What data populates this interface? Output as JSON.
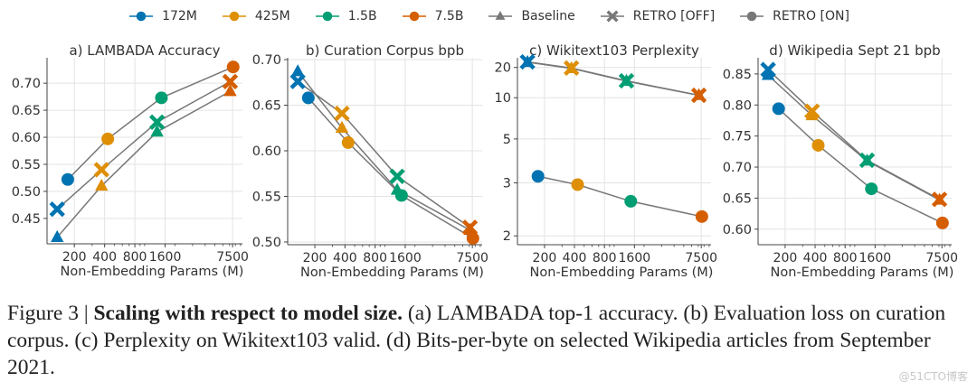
{
  "legend": [
    {
      "label": "172M",
      "color": "#0173b2",
      "marker": "circle"
    },
    {
      "label": "425M",
      "color": "#de8f05",
      "marker": "circle"
    },
    {
      "label": "1.5B",
      "color": "#029e73",
      "marker": "circle"
    },
    {
      "label": "7.5B",
      "color": "#d55e00",
      "marker": "circle"
    },
    {
      "label": "Baseline",
      "color": "#777777",
      "marker": "triangle"
    },
    {
      "label": "RETRO [OFF]",
      "color": "#777777",
      "marker": "x"
    },
    {
      "label": "RETRO [ON]",
      "color": "#777777",
      "marker": "circle"
    }
  ],
  "size_colors": [
    "#0173b2",
    "#de8f05",
    "#029e73",
    "#d55e00"
  ],
  "chart_data": [
    {
      "type": "line",
      "title": "a) LAMBADA Accuracy",
      "xlabel": "Non-Embedding Params (M)",
      "xscale": "log",
      "xticks": [
        200,
        400,
        800,
        1600,
        7500
      ],
      "xlim": [
        107,
        9400
      ],
      "ylim": [
        0.403,
        0.747
      ],
      "yscale": "linear",
      "yticks": [
        "0.45",
        "0.50",
        "0.55",
        "0.60",
        "0.65",
        "0.70"
      ],
      "grid": true,
      "series": [
        {
          "name": "Baseline",
          "marker": "triangle",
          "x": [
            135,
            373,
            1330,
            7100
          ],
          "y": [
            0.415,
            0.51,
            0.61,
            0.685
          ]
        },
        {
          "name": "RETRO [OFF]",
          "marker": "x",
          "x": [
            135,
            373,
            1330,
            7100
          ],
          "y": [
            0.467,
            0.54,
            0.628,
            0.703
          ]
        },
        {
          "name": "RETRO [ON]",
          "marker": "circle",
          "x": [
            172,
            430,
            1470,
            7600
          ],
          "y": [
            0.522,
            0.597,
            0.673,
            0.73
          ]
        }
      ]
    },
    {
      "type": "line",
      "title": "b) Curation Corpus bpb",
      "xlabel": "Non-Embedding Params (M)",
      "xscale": "log",
      "xticks": [
        200,
        400,
        800,
        1600,
        7500
      ],
      "xlim": [
        107,
        9400
      ],
      "ylim": [
        0.497,
        0.702
      ],
      "yscale": "linear",
      "yticks": [
        "0.50",
        "0.55",
        "0.60",
        "0.65",
        "0.70"
      ],
      "grid": true,
      "series": [
        {
          "name": "Baseline",
          "marker": "triangle",
          "x": [
            135,
            373,
            1330,
            7100
          ],
          "y": [
            0.687,
            0.625,
            0.557,
            0.513
          ]
        },
        {
          "name": "RETRO [OFF]",
          "marker": "x",
          "x": [
            135,
            373,
            1330,
            7100
          ],
          "y": [
            0.676,
            0.641,
            0.572,
            0.516
          ]
        },
        {
          "name": "RETRO [ON]",
          "marker": "circle",
          "x": [
            172,
            430,
            1470,
            7600
          ],
          "y": [
            0.658,
            0.609,
            0.551,
            0.504
          ]
        }
      ]
    },
    {
      "type": "line",
      "title": "c) Wikitext103 Perplexity",
      "xlabel": "Non-Embedding Params (M)",
      "xscale": "log",
      "xticks": [
        200,
        400,
        800,
        1600,
        7500
      ],
      "xlim": [
        107,
        9400
      ],
      "ylim": [
        1.9,
        26
      ],
      "yscale": "log-log",
      "yticks": [
        "2",
        "3",
        "5",
        "10",
        "20"
      ],
      "grid": true,
      "series": [
        {
          "name": "Baseline",
          "marker": "triangle",
          "x": [
            135,
            373,
            1330,
            7100
          ],
          "y": [
            23.0,
            19.5,
            14.3,
            10.5
          ]
        },
        {
          "name": "RETRO [OFF]",
          "marker": "x",
          "x": [
            135,
            373,
            1330,
            7100
          ],
          "y": [
            23.2,
            19.7,
            14.4,
            10.5
          ]
        },
        {
          "name": "RETRO [ON]",
          "marker": "circle",
          "x": [
            172,
            430,
            1470,
            7600
          ],
          "y": [
            3.2,
            2.95,
            2.55,
            2.27
          ]
        }
      ]
    },
    {
      "type": "line",
      "title": "d) Wikipedia Sept 21 bpb",
      "xlabel": "Non-Embedding Params (M)",
      "xscale": "log",
      "xticks": [
        200,
        400,
        800,
        1600,
        7500
      ],
      "xlim": [
        107,
        9400
      ],
      "ylim": [
        0.575,
        0.876
      ],
      "yscale": "linear",
      "yticks": [
        "0.60",
        "0.65",
        "0.70",
        "0.75",
        "0.80",
        "0.85"
      ],
      "grid": true,
      "series": [
        {
          "name": "Baseline",
          "marker": "triangle",
          "x": [
            135,
            373,
            1330,
            7100
          ],
          "y": [
            0.848,
            0.783,
            0.71,
            0.647
          ]
        },
        {
          "name": "RETRO [OFF]",
          "marker": "x",
          "x": [
            135,
            373,
            1330,
            7100
          ],
          "y": [
            0.857,
            0.79,
            0.711,
            0.648
          ]
        },
        {
          "name": "RETRO [ON]",
          "marker": "circle",
          "x": [
            172,
            430,
            1470,
            7600
          ],
          "y": [
            0.794,
            0.735,
            0.665,
            0.61
          ]
        }
      ]
    }
  ],
  "caption": {
    "label": "Figure 3 | ",
    "bold": "Scaling with respect to model size.",
    "text": " (a) LAMBADA top-1 accuracy. (b) Evaluation loss on curation corpus. (c) Perplexity on Wikitext103 valid. (d) Bits-per-byte on selected Wikipedia articles from September 2021."
  },
  "watermark": "@51CTO博客"
}
